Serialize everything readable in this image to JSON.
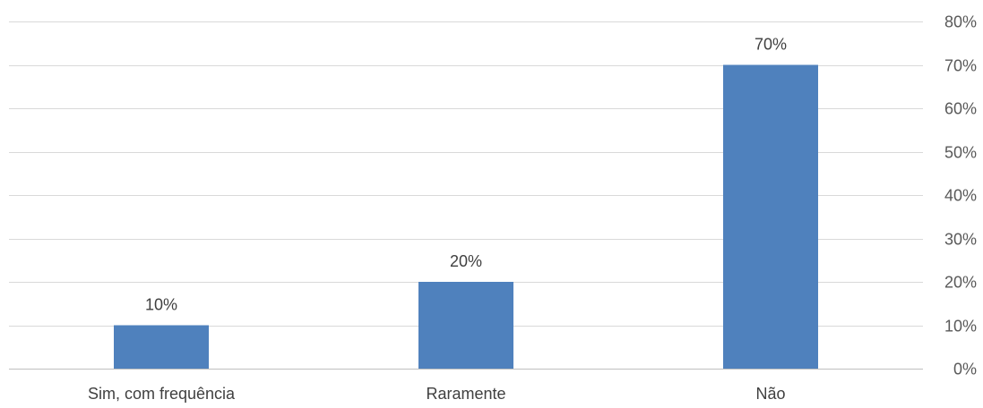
{
  "chart_data": {
    "type": "bar",
    "categories": [
      "Sim, com frequência",
      "Raramente",
      "Não"
    ],
    "values": [
      10,
      20,
      70
    ],
    "data_labels": [
      "10%",
      "20%",
      "70%"
    ],
    "ylim": [
      0,
      80
    ],
    "yticks": [
      0,
      10,
      20,
      30,
      40,
      50,
      60,
      70,
      80
    ],
    "ytick_labels": [
      "0%",
      "10%",
      "20%",
      "30%",
      "40%",
      "50%",
      "60%",
      "70%",
      "80%"
    ],
    "yaxis_position": "right",
    "grid": true,
    "legend": "none",
    "bar_color": "#4f81bd",
    "title": "",
    "xlabel": "",
    "ylabel": ""
  }
}
